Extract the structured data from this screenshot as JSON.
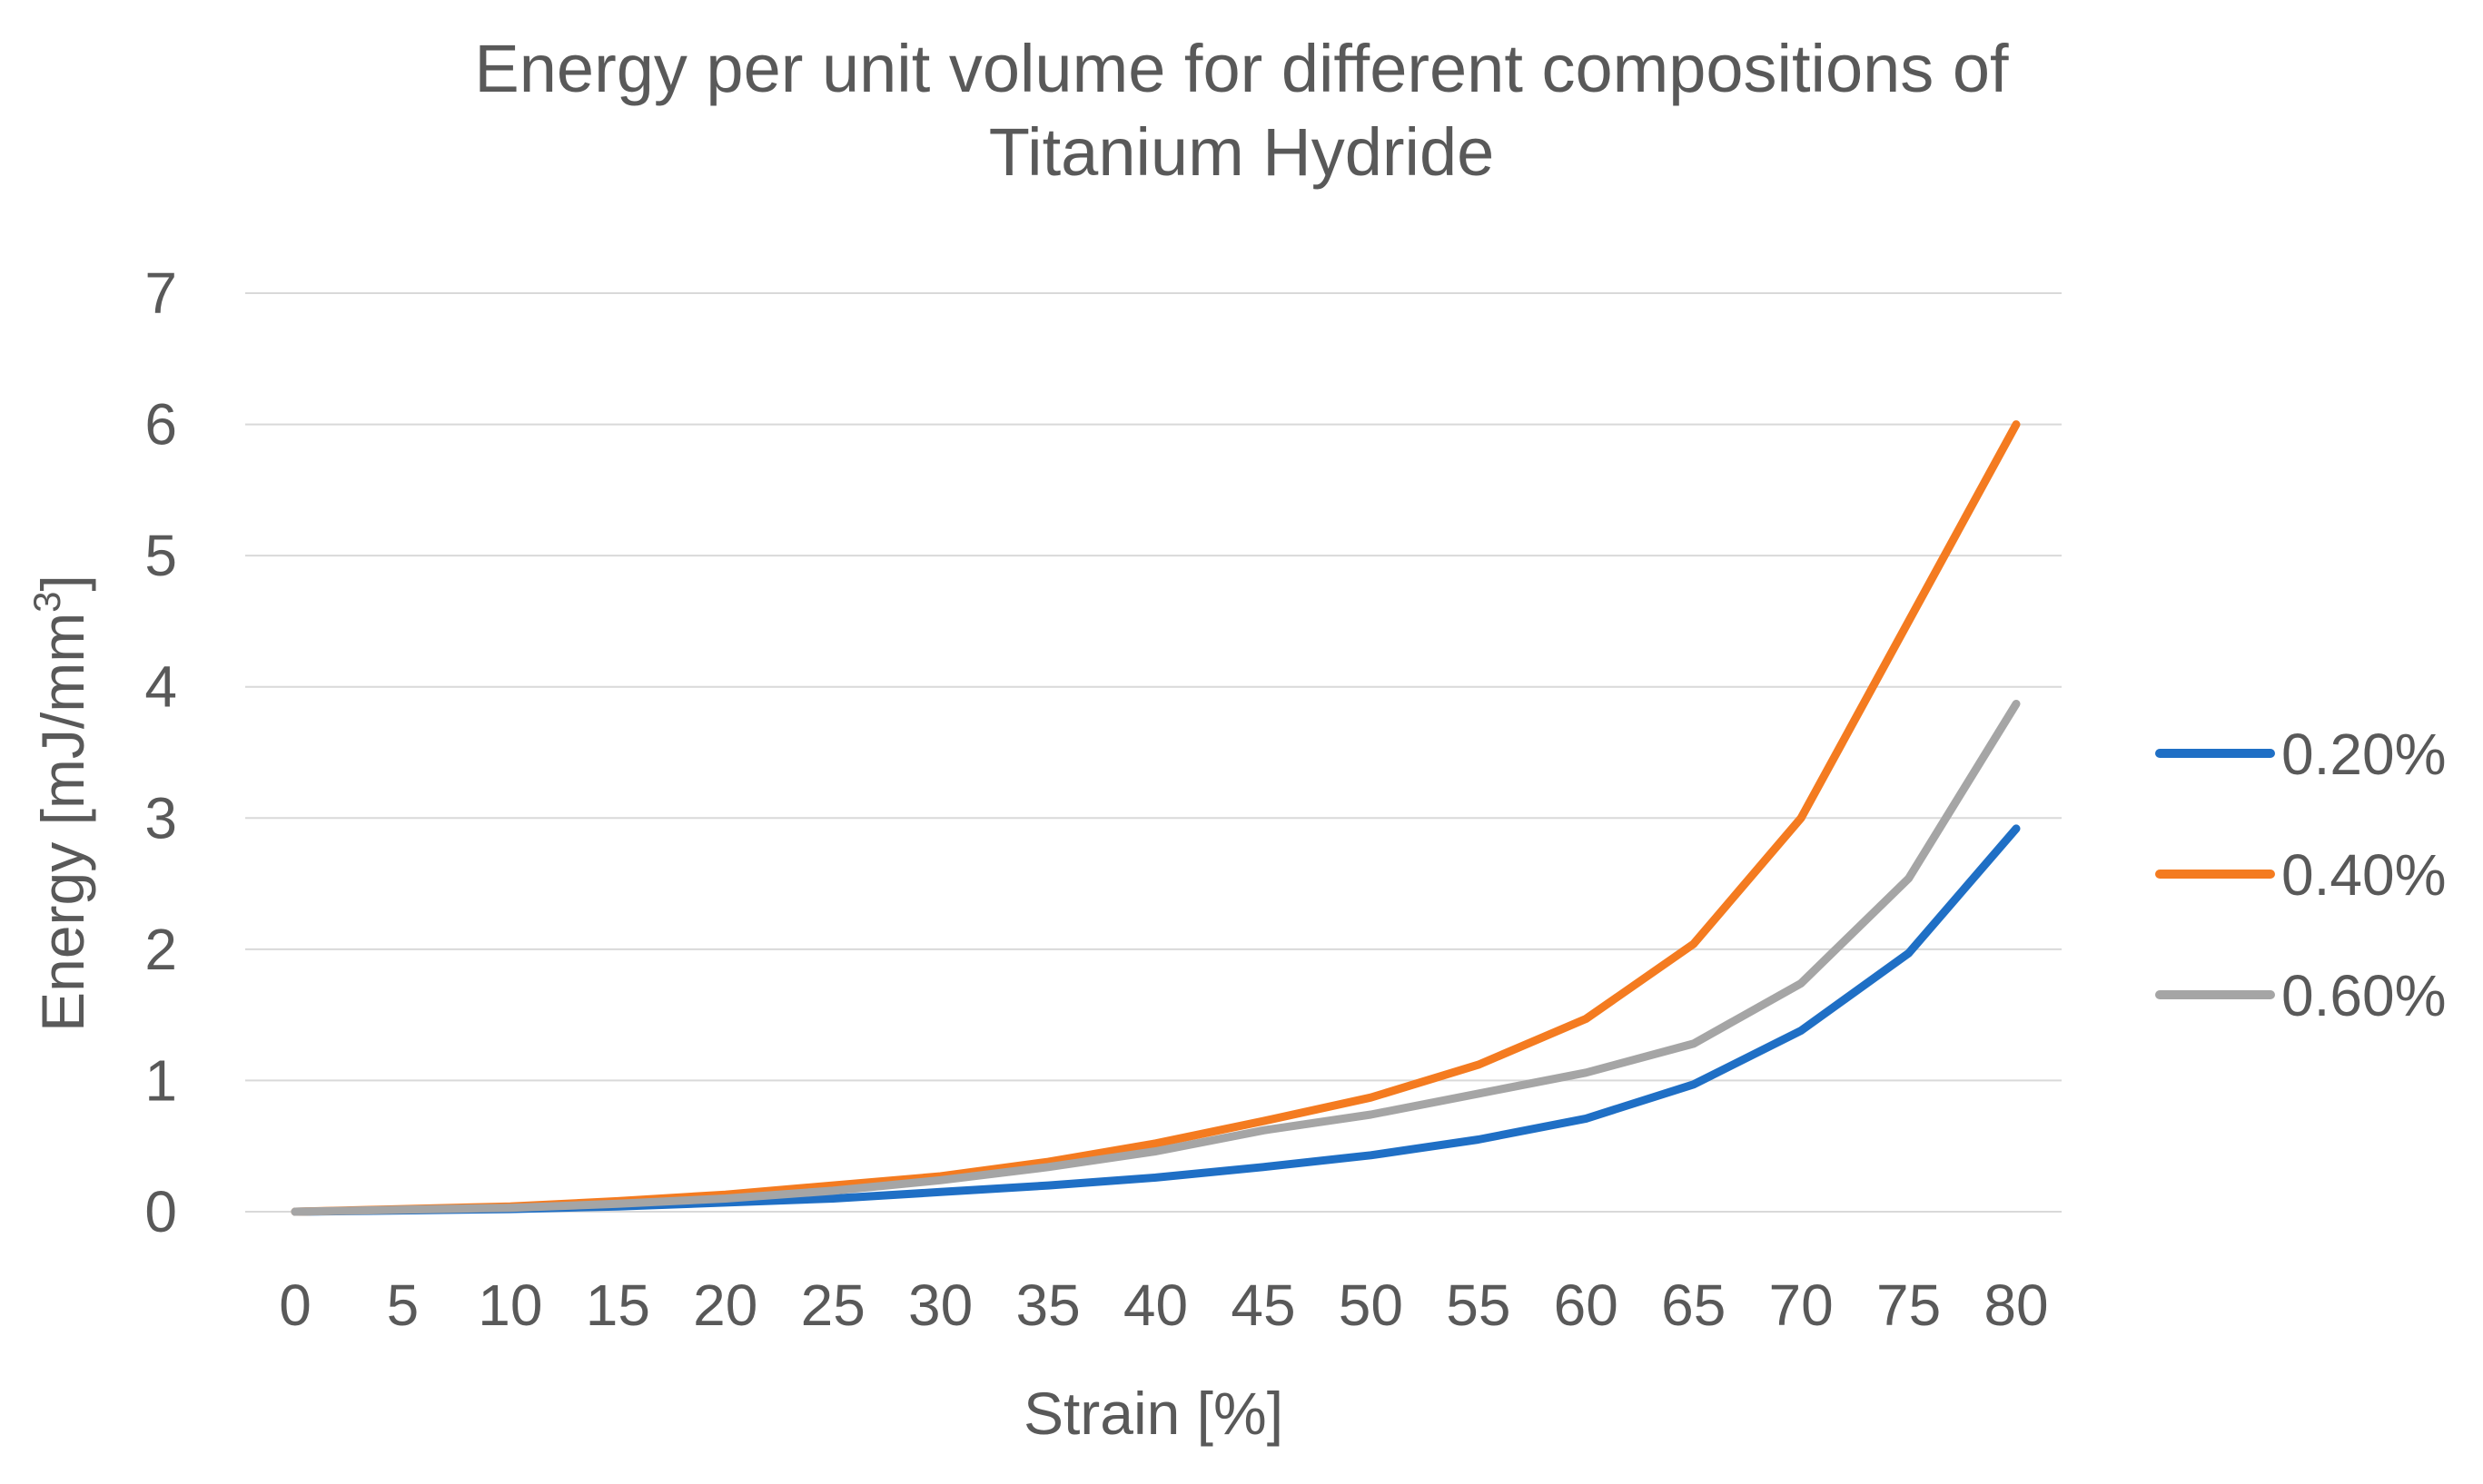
{
  "chart_data": {
    "type": "line",
    "title_line1": "Energy per unit volume for different compositions of",
    "title_line2": "Titanium Hydride",
    "xlabel": "Strain [%]",
    "ylabel_main": "Energy [mJ/mm",
    "ylabel_sup": "3",
    "ylabel_end": "]",
    "categories": [
      "0",
      "5",
      "10",
      "15",
      "20",
      "25",
      "30",
      "35",
      "40",
      "45",
      "50",
      "55",
      "60",
      "65",
      "70",
      "75",
      "80"
    ],
    "ylim": [
      0,
      7
    ],
    "yticks": [
      "0",
      "1",
      "2",
      "3",
      "4",
      "5",
      "6",
      "7"
    ],
    "grid": true,
    "legend_position": "right",
    "series": [
      {
        "name": "0.20%",
        "color": "#1f6fc5",
        "values": [
          0,
          0.01,
          0.02,
          0.04,
          0.07,
          0.1,
          0.15,
          0.2,
          0.26,
          0.34,
          0.43,
          0.55,
          0.71,
          0.97,
          1.38,
          1.97,
          2.92
        ]
      },
      {
        "name": "0.40%",
        "color": "#f47b20",
        "values": [
          0,
          0.02,
          0.04,
          0.08,
          0.13,
          0.2,
          0.27,
          0.38,
          0.52,
          0.69,
          0.87,
          1.12,
          1.47,
          2.04,
          3.0,
          4.5,
          6.0
        ]
      },
      {
        "name": "0.60%",
        "color": "#a5a5a5",
        "values": [
          0,
          0.015,
          0.03,
          0.06,
          0.1,
          0.16,
          0.24,
          0.34,
          0.46,
          0.62,
          0.74,
          0.9,
          1.06,
          1.28,
          1.74,
          2.54,
          3.87
        ]
      }
    ]
  }
}
